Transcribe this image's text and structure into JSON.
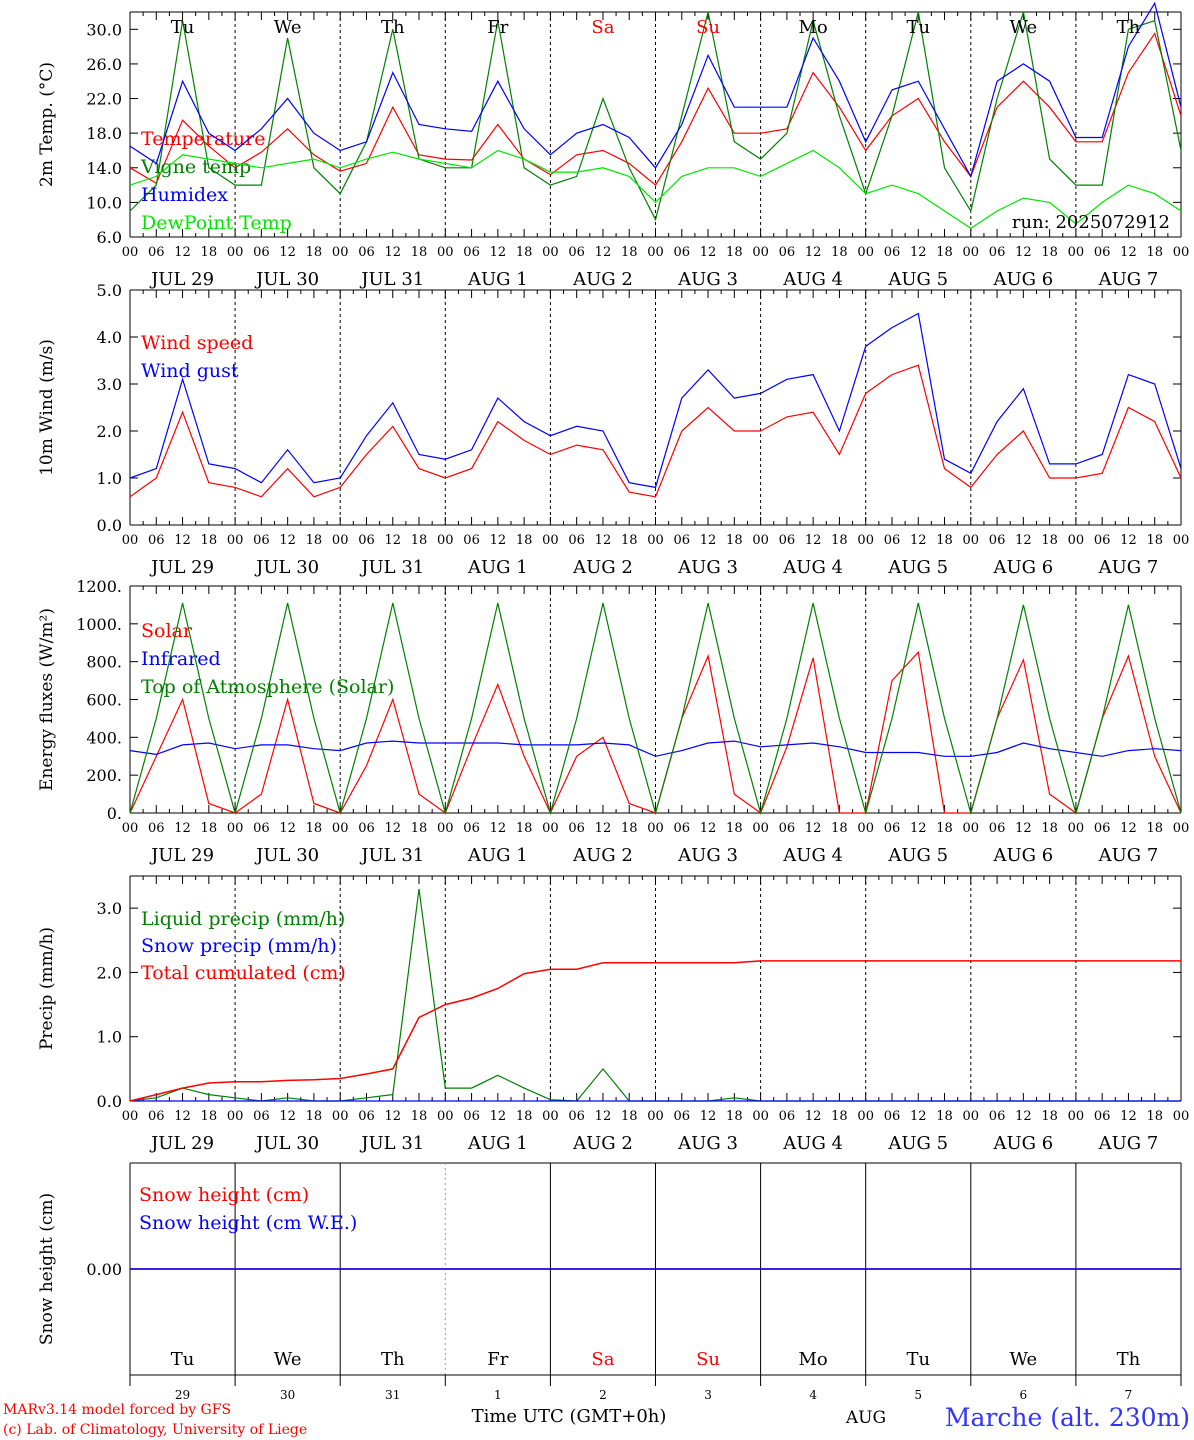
{
  "footer": {
    "model": "MARv3.14 model forced by GFS",
    "credit": "(c) Lab. of Climatology, University of Liege",
    "xlabel": "Time UTC (GMT+0h)",
    "month": "AUG",
    "station": "Marche (alt. 230m)"
  },
  "run_label": "run: 2025072912",
  "colors": {
    "red": "#ff0000",
    "green": "#008000",
    "blue": "#0000ff",
    "lightgreen": "#00e600",
    "axis": "#000000"
  },
  "axis": {
    "hour_ticks": [
      "00",
      "06",
      "12",
      "18"
    ],
    "days": [
      "JUL 29",
      "JUL 30",
      "JUL 31",
      "AUG  1",
      "AUG  2",
      "AUG  3",
      "AUG  4",
      "AUG  5",
      "AUG  6",
      "AUG  7"
    ],
    "weekdays": [
      "Tu",
      "We",
      "Th",
      "Fr",
      "Sa",
      "Su",
      "Mo",
      "Tu",
      "We",
      "Th"
    ],
    "weekend": [
      false,
      false,
      false,
      false,
      true,
      true,
      false,
      false,
      false,
      false
    ],
    "day_numbers": [
      "29",
      "30",
      "31",
      "1",
      "2",
      "3",
      "4",
      "5",
      "6",
      "7"
    ]
  },
  "chart_data": [
    {
      "type": "line",
      "id": "temp",
      "ylabel": "2m Temp. (°C)",
      "ylim": [
        6,
        32
      ],
      "yticks": [
        "6.0",
        "10.0",
        "14.0",
        "18.0",
        "22.0",
        "26.0",
        "30.0"
      ],
      "x_hours": [
        0,
        6,
        12,
        18,
        24,
        30,
        36,
        42,
        48,
        54,
        60,
        66,
        72,
        78,
        84,
        90,
        96,
        102,
        108,
        114,
        120,
        126,
        132,
        138,
        144,
        150,
        156,
        162,
        168,
        174,
        180,
        186,
        192,
        198,
        204,
        210,
        216,
        222,
        228,
        234,
        240
      ],
      "series": [
        {
          "name": "Temperature",
          "color": "#ff0000",
          "values": [
            14.0,
            12.2,
            19.5,
            16.5,
            14.0,
            15.8,
            18.5,
            15.5,
            13.6,
            14.5,
            21.0,
            15.5,
            15.0,
            14.9,
            19.0,
            15.0,
            13.2,
            15.5,
            16.0,
            14.5,
            12.0,
            17.0,
            23.2,
            18.0,
            18.0,
            18.5,
            25.0,
            21.0,
            16.0,
            20.0,
            22.0,
            17.0,
            13.0,
            21.0,
            24.0,
            21.0,
            17.0,
            17.0,
            25.0,
            29.5,
            20.0
          ]
        },
        {
          "name": "Vigne temp",
          "color": "#008000",
          "values": [
            9.0,
            12.0,
            31.0,
            14.0,
            12.0,
            12.0,
            29.0,
            14.0,
            11.0,
            17.0,
            30.0,
            15.0,
            14.0,
            14.0,
            31.0,
            14.0,
            12.0,
            13.0,
            22.0,
            14.0,
            8.0,
            20.0,
            32.0,
            17.0,
            15.0,
            18.0,
            31.0,
            20.0,
            11.0,
            20.0,
            32.0,
            14.0,
            9.0,
            22.0,
            32.0,
            15.0,
            12.0,
            12.0,
            30.0,
            31.0,
            16.0
          ]
        },
        {
          "name": "Humidex",
          "color": "#0000ff",
          "values": [
            16.5,
            14.5,
            24.0,
            18.0,
            16.0,
            18.5,
            22.0,
            18.0,
            16.0,
            17.0,
            25.0,
            19.0,
            18.5,
            18.2,
            24.0,
            18.5,
            15.5,
            18.0,
            19.0,
            17.5,
            14.0,
            19.0,
            27.0,
            21.0,
            21.0,
            21.0,
            29.0,
            24.0,
            17.0,
            23.0,
            24.0,
            18.5,
            13.0,
            24.0,
            26.0,
            24.0,
            17.5,
            17.5,
            28.0,
            33.0,
            21.0
          ]
        },
        {
          "name": "DewPoint Temp",
          "color": "#00e600",
          "values": [
            12.0,
            13.0,
            15.5,
            15.0,
            14.5,
            14.0,
            14.5,
            15.0,
            14.0,
            15.0,
            15.8,
            15.0,
            14.5,
            14.0,
            16.0,
            15.0,
            13.5,
            13.5,
            14.0,
            13.0,
            10.0,
            13.0,
            14.0,
            14.0,
            13.0,
            14.5,
            16.0,
            14.0,
            11.0,
            12.0,
            11.0,
            9.0,
            7.0,
            9.0,
            10.5,
            10.0,
            7.5,
            10.0,
            12.0,
            11.0,
            9.0
          ]
        }
      ]
    },
    {
      "type": "line",
      "id": "wind",
      "ylabel": "10m Wind (m/s)",
      "ylim": [
        0,
        5
      ],
      "yticks": [
        "0.0",
        "1.0",
        "2.0",
        "3.0",
        "4.0",
        "5.0"
      ],
      "x_hours": [
        0,
        6,
        12,
        18,
        24,
        30,
        36,
        42,
        48,
        54,
        60,
        66,
        72,
        78,
        84,
        90,
        96,
        102,
        108,
        114,
        120,
        126,
        132,
        138,
        144,
        150,
        156,
        162,
        168,
        174,
        180,
        186,
        192,
        198,
        204,
        210,
        216,
        222,
        228,
        234,
        240
      ],
      "series": [
        {
          "name": "Wind speed",
          "color": "#ff0000",
          "values": [
            0.6,
            1.0,
            2.4,
            0.9,
            0.8,
            0.6,
            1.2,
            0.6,
            0.8,
            1.5,
            2.1,
            1.2,
            1.0,
            1.2,
            2.2,
            1.8,
            1.5,
            1.7,
            1.6,
            0.7,
            0.6,
            2.0,
            2.5,
            2.0,
            2.0,
            2.3,
            2.4,
            1.5,
            2.8,
            3.2,
            3.4,
            1.2,
            0.8,
            1.5,
            2.0,
            1.0,
            1.0,
            1.1,
            2.5,
            2.2,
            1.0
          ]
        },
        {
          "name": "Wind gust",
          "color": "#0000ff",
          "values": [
            1.0,
            1.2,
            3.1,
            1.3,
            1.2,
            0.9,
            1.6,
            0.9,
            1.0,
            1.9,
            2.6,
            1.5,
            1.4,
            1.6,
            2.7,
            2.2,
            1.9,
            2.1,
            2.0,
            0.9,
            0.8,
            2.7,
            3.3,
            2.7,
            2.8,
            3.1,
            3.2,
            2.0,
            3.8,
            4.2,
            4.5,
            1.4,
            1.1,
            2.2,
            2.9,
            1.3,
            1.3,
            1.5,
            3.2,
            3.0,
            1.2
          ]
        }
      ]
    },
    {
      "type": "line",
      "id": "energy",
      "ylabel": "Energy fluxes (W/m²)",
      "ylim": [
        0,
        1200
      ],
      "yticks": [
        "0.",
        "200.",
        "400.",
        "600.",
        "800.",
        "1000.",
        "1200."
      ],
      "x_hours": [
        0,
        6,
        12,
        18,
        24,
        30,
        36,
        42,
        48,
        54,
        60,
        66,
        72,
        78,
        84,
        90,
        96,
        102,
        108,
        114,
        120,
        126,
        132,
        138,
        144,
        150,
        156,
        162,
        168,
        174,
        180,
        186,
        192,
        198,
        204,
        210,
        216,
        222,
        228,
        234,
        240
      ],
      "series": [
        {
          "name": "Solar",
          "color": "#ff0000",
          "values": [
            0,
            300,
            600,
            50,
            0,
            100,
            600,
            50,
            0,
            250,
            600,
            100,
            0,
            350,
            680,
            300,
            0,
            300,
            400,
            50,
            0,
            500,
            830,
            100,
            0,
            350,
            820,
            0,
            0,
            700,
            850,
            0,
            0,
            500,
            810,
            100,
            0,
            500,
            830,
            300,
            0
          ]
        },
        {
          "name": "Infrared",
          "color": "#0000ff",
          "values": [
            330,
            310,
            360,
            370,
            340,
            360,
            360,
            340,
            330,
            370,
            380,
            370,
            370,
            370,
            370,
            360,
            360,
            360,
            370,
            360,
            300,
            330,
            370,
            380,
            350,
            360,
            370,
            350,
            320,
            320,
            320,
            300,
            300,
            320,
            370,
            340,
            320,
            300,
            330,
            340,
            330
          ]
        },
        {
          "name": "Top of Atmosphere (Solar)",
          "color": "#008000",
          "values": [
            0,
            500,
            1110,
            500,
            0,
            500,
            1110,
            500,
            0,
            500,
            1110,
            500,
            0,
            500,
            1110,
            500,
            0,
            500,
            1110,
            500,
            0,
            500,
            1110,
            500,
            0,
            500,
            1110,
            500,
            0,
            500,
            1110,
            500,
            0,
            500,
            1100,
            500,
            0,
            500,
            1100,
            500,
            0
          ]
        }
      ]
    },
    {
      "type": "line",
      "id": "precip",
      "ylabel": "Precip (mm/h)",
      "ylim": [
        0,
        3.5
      ],
      "yticks": [
        "0.0",
        "1.0",
        "2.0",
        "3.0"
      ],
      "x_hours": [
        0,
        6,
        12,
        18,
        24,
        30,
        36,
        42,
        48,
        54,
        60,
        66,
        72,
        78,
        84,
        90,
        96,
        102,
        108,
        114,
        120,
        126,
        132,
        138,
        144,
        150,
        156,
        162,
        168,
        174,
        180,
        186,
        192,
        198,
        204,
        210,
        216,
        222,
        228,
        234,
        240
      ],
      "series": [
        {
          "name": "Liquid precip (mm/h)",
          "color": "#008000",
          "values": [
            0,
            0.05,
            0.2,
            0.1,
            0.05,
            0,
            0.05,
            0,
            0,
            0.05,
            0.1,
            3.3,
            0.2,
            0.2,
            0.4,
            0.2,
            0.02,
            0,
            0.5,
            0,
            0,
            0,
            0,
            0.05,
            0,
            0,
            0,
            0,
            0,
            0,
            0,
            0,
            0,
            0,
            0,
            0,
            0,
            0,
            0,
            0,
            0
          ]
        },
        {
          "name": "Snow precip (mm/h)",
          "color": "#0000ff",
          "values": [
            0,
            0,
            0,
            0,
            0,
            0,
            0,
            0,
            0,
            0,
            0,
            0,
            0,
            0,
            0,
            0,
            0,
            0,
            0,
            0,
            0,
            0,
            0,
            0,
            0,
            0,
            0,
            0,
            0,
            0,
            0,
            0,
            0,
            0,
            0,
            0,
            0,
            0,
            0,
            0,
            0
          ]
        },
        {
          "name": "Total cumulated (cm)",
          "color": "#ff0000",
          "values": [
            0,
            0.1,
            0.2,
            0.28,
            0.3,
            0.3,
            0.32,
            0.33,
            0.35,
            0.42,
            0.5,
            1.3,
            1.5,
            1.6,
            1.75,
            1.98,
            2.05,
            2.05,
            2.15,
            2.15,
            2.15,
            2.15,
            2.15,
            2.15,
            2.18,
            2.18,
            2.18,
            2.18,
            2.18,
            2.18,
            2.18,
            2.18,
            2.18,
            2.18,
            2.18,
            2.18,
            2.18,
            2.18,
            2.18,
            2.18,
            2.18
          ]
        }
      ]
    },
    {
      "type": "line",
      "id": "snow",
      "ylabel": "Snow height (cm)",
      "ylim": [
        -1,
        1
      ],
      "yticks": [
        "0.00"
      ],
      "x_hours": [
        0,
        240
      ],
      "series": [
        {
          "name": "Snow height (cm)",
          "color": "#ff0000",
          "values": [
            0,
            0
          ]
        },
        {
          "name": "Snow height (cm W.E.)",
          "color": "#0000ff",
          "values": [
            0,
            0
          ]
        }
      ]
    }
  ]
}
